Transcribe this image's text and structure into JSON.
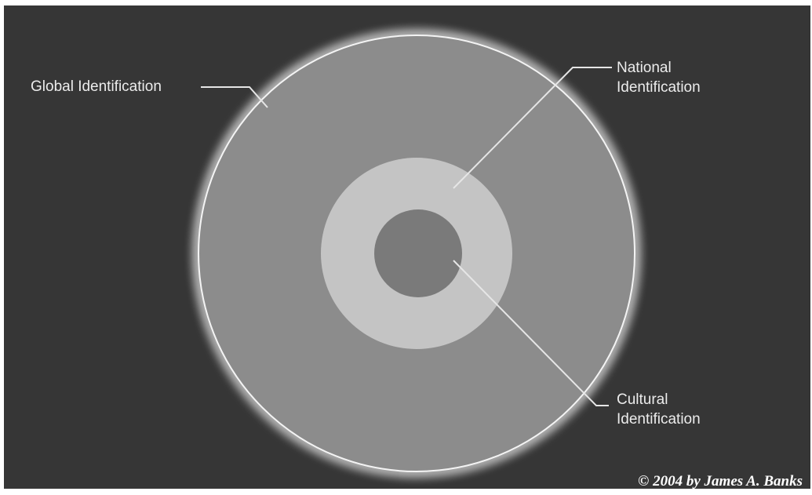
{
  "colors": {
    "background": "#363636",
    "outer_ring": "#8c8c8c",
    "middle_ring": "#c4c4c4",
    "inner_circle": "#7a7a7a",
    "glow": "#ffffff",
    "text": "#ececec"
  },
  "labels": {
    "global": "Global Identification",
    "national": [
      "National",
      "Identification"
    ],
    "cultural": [
      "Cultural",
      "Identification"
    ]
  },
  "copyright": "© 2004 by James A. Banks"
}
